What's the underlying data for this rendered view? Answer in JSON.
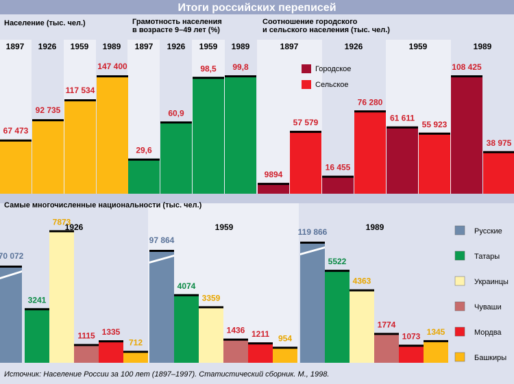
{
  "title": "Итоги российских переписей",
  "source": "Источник: Население России за 100 лет (1897–1997). Статистический сборник. М., 1998.",
  "colors": {
    "population": "#fdb913",
    "literacy": "#0b9b4e",
    "urban": "#a30e2f",
    "rural": "#ee1c24",
    "russians": "#6e8aab",
    "tatars": "#0b9b4e",
    "ukrainians": "#fff3ad",
    "chuvash": "#c76b6b",
    "mordva": "#ee1c24",
    "bashkirs": "#fdb913",
    "label_red": "#d01f2a",
    "label_blue": "#5a7399",
    "label_orange": "#e8a600",
    "label_green": "#0b8a45"
  },
  "chart_data": [
    {
      "id": "population",
      "type": "bar",
      "title": "Население (тыс. чел.)",
      "categories": [
        "1897",
        "1926",
        "1959",
        "1989"
      ],
      "values": [
        67473,
        92735,
        117534,
        147400
      ],
      "labels": [
        "67 473",
        "92 735",
        "117 534",
        "147 400"
      ],
      "ylim": [
        0,
        170000
      ]
    },
    {
      "id": "literacy",
      "type": "bar",
      "title_lines": [
        "Грамотность населения",
        "в возрасте 9–49 лет (%)"
      ],
      "categories": [
        "1897",
        "1926",
        "1959",
        "1989"
      ],
      "values": [
        29.6,
        60.9,
        98.5,
        99.8
      ],
      "labels": [
        "29,6",
        "60,9",
        "98,5",
        "99,8"
      ],
      "ylim": [
        0,
        114
      ]
    },
    {
      "id": "urban_rural",
      "type": "bar",
      "title_lines": [
        "Соотношение городского",
        "и сельского населения (тыс. чел.)"
      ],
      "categories": [
        "1897",
        "1926",
        "1959",
        "1989"
      ],
      "legend": [
        "Городское",
        "Сельское"
      ],
      "series": [
        {
          "name": "Городское",
          "values": [
            9894,
            16455,
            61611,
            108425
          ],
          "labels": [
            "9894",
            "16 455",
            "61 611",
            "108 425"
          ]
        },
        {
          "name": "Сельское",
          "values": [
            57579,
            76280,
            55923,
            38975
          ],
          "labels": [
            "57 579",
            "76 280",
            "55 923",
            "38 975"
          ]
        }
      ],
      "ylim": [
        0,
        125000
      ]
    },
    {
      "id": "nationalities",
      "type": "bar",
      "title": "Самые многочисленные национальности (тыс. чел.)",
      "categories": [
        "1926",
        "1959",
        "1989"
      ],
      "legend": [
        "Русские",
        "Татары",
        "Украинцы",
        "Чуваши",
        "Мордва",
        "Башкиры"
      ],
      "axis_break": true,
      "series": [
        {
          "name": "Русские",
          "values": [
            70072,
            97864,
            119866
          ],
          "labels": [
            "70 072",
            "97 864",
            "119 866"
          ]
        },
        {
          "name": "Татары",
          "values": [
            3241,
            4074,
            5522
          ],
          "labels": [
            "3241",
            "4074",
            "5522"
          ]
        },
        {
          "name": "Украинцы",
          "values": [
            7873,
            3359,
            4363
          ],
          "labels": [
            "7873",
            "3359",
            "4363"
          ]
        },
        {
          "name": "Чуваши",
          "values": [
            1115,
            1436,
            1774
          ],
          "labels": [
            "1115",
            "1436",
            "1774"
          ]
        },
        {
          "name": "Мордва",
          "values": [
            1335,
            1211,
            1073
          ],
          "labels": [
            "1335",
            "1211",
            "1073"
          ]
        },
        {
          "name": "Башкиры",
          "values": [
            712,
            954,
            1345
          ],
          "labels": [
            "712",
            "954",
            "1345"
          ]
        }
      ]
    }
  ]
}
